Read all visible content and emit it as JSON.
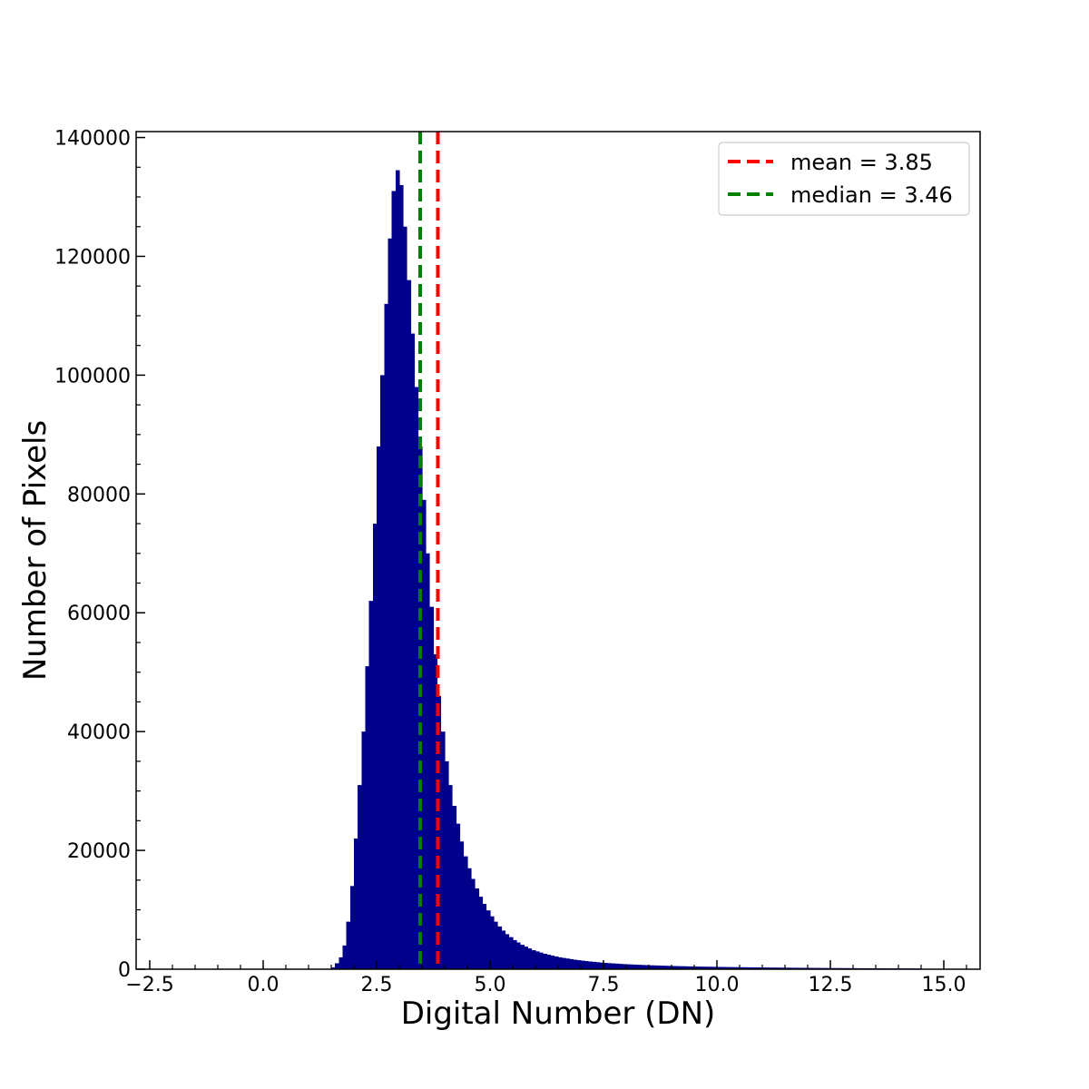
{
  "chart_data": {
    "type": "bar",
    "xlabel": "Digital Number (DN)",
    "ylabel": "Number of Pixels",
    "xlim": [
      -2.8,
      15.8
    ],
    "ylim": [
      0,
      141000
    ],
    "bar_color": "#00008b",
    "x_ticks": [
      "−2.5",
      "0.0",
      "2.5",
      "5.0",
      "7.5",
      "10.0",
      "12.5",
      "15.0"
    ],
    "x_tick_values": [
      -2.5,
      0.0,
      2.5,
      5.0,
      7.5,
      10.0,
      12.5,
      15.0
    ],
    "y_ticks": [
      "0",
      "20000",
      "40000",
      "60000",
      "80000",
      "100000",
      "120000",
      "140000"
    ],
    "y_tick_values": [
      0,
      20000,
      40000,
      60000,
      80000,
      100000,
      120000,
      140000
    ],
    "bin_width": 0.0835,
    "bins": [
      [
        1.5,
        300
      ],
      [
        1.58,
        1000
      ],
      [
        1.67,
        2000
      ],
      [
        1.75,
        4000
      ],
      [
        1.83,
        8000
      ],
      [
        1.92,
        14000
      ],
      [
        2.0,
        22000
      ],
      [
        2.08,
        31000
      ],
      [
        2.17,
        40000
      ],
      [
        2.25,
        51000
      ],
      [
        2.33,
        62000
      ],
      [
        2.42,
        75000
      ],
      [
        2.5,
        88000
      ],
      [
        2.58,
        100000
      ],
      [
        2.67,
        112000
      ],
      [
        2.75,
        123000
      ],
      [
        2.83,
        131000
      ],
      [
        2.92,
        134500
      ],
      [
        3.0,
        132000
      ],
      [
        3.08,
        125000
      ],
      [
        3.17,
        116000
      ],
      [
        3.25,
        107000
      ],
      [
        3.33,
        98000
      ],
      [
        3.42,
        88000
      ],
      [
        3.5,
        79000
      ],
      [
        3.58,
        70000
      ],
      [
        3.67,
        61000
      ],
      [
        3.75,
        53000
      ],
      [
        3.83,
        46000
      ],
      [
        3.92,
        40000
      ],
      [
        4.0,
        35000
      ],
      [
        4.08,
        31000
      ],
      [
        4.17,
        27500
      ],
      [
        4.25,
        24500
      ],
      [
        4.33,
        21500
      ],
      [
        4.42,
        19000
      ],
      [
        4.5,
        17000
      ],
      [
        4.58,
        15200
      ],
      [
        4.67,
        13600
      ],
      [
        4.75,
        12200
      ],
      [
        4.83,
        11000
      ],
      [
        4.92,
        9900
      ],
      [
        5.0,
        8900
      ],
      [
        5.08,
        8000
      ],
      [
        5.17,
        7200
      ],
      [
        5.25,
        6500
      ],
      [
        5.33,
        5900
      ],
      [
        5.42,
        5400
      ],
      [
        5.5,
        4900
      ],
      [
        5.58,
        4500
      ],
      [
        5.67,
        4100
      ],
      [
        5.75,
        3800
      ],
      [
        5.83,
        3500
      ],
      [
        5.92,
        3200
      ],
      [
        6.0,
        3000
      ],
      [
        6.08,
        2800
      ],
      [
        6.17,
        2600
      ],
      [
        6.25,
        2450
      ],
      [
        6.33,
        2300
      ],
      [
        6.42,
        2150
      ],
      [
        6.5,
        2000
      ],
      [
        6.58,
        1900
      ],
      [
        6.67,
        1800
      ],
      [
        6.75,
        1700
      ],
      [
        6.83,
        1600
      ],
      [
        6.92,
        1520
      ],
      [
        7.0,
        1440
      ],
      [
        7.08,
        1370
      ],
      [
        7.17,
        1300
      ],
      [
        7.25,
        1240
      ],
      [
        7.33,
        1180
      ],
      [
        7.42,
        1120
      ],
      [
        7.5,
        1070
      ],
      [
        7.58,
        1020
      ],
      [
        7.67,
        980
      ],
      [
        7.75,
        940
      ],
      [
        7.83,
        900
      ],
      [
        7.92,
        860
      ],
      [
        8.0,
        830
      ],
      [
        8.08,
        800
      ],
      [
        8.17,
        770
      ],
      [
        8.25,
        740
      ],
      [
        8.33,
        710
      ],
      [
        8.42,
        690
      ],
      [
        8.5,
        660
      ],
      [
        8.58,
        640
      ],
      [
        8.67,
        620
      ],
      [
        8.75,
        600
      ],
      [
        8.83,
        580
      ],
      [
        8.92,
        560
      ],
      [
        9.0,
        540
      ],
      [
        9.08,
        525
      ],
      [
        9.17,
        510
      ],
      [
        9.25,
        495
      ],
      [
        9.33,
        480
      ],
      [
        9.42,
        465
      ],
      [
        9.5,
        450
      ],
      [
        9.58,
        440
      ],
      [
        9.67,
        430
      ],
      [
        9.75,
        420
      ],
      [
        9.83,
        410
      ],
      [
        9.92,
        400
      ],
      [
        10.0,
        390
      ],
      [
        10.08,
        380
      ],
      [
        10.17,
        370
      ],
      [
        10.25,
        360
      ],
      [
        10.33,
        352
      ],
      [
        10.42,
        344
      ],
      [
        10.5,
        336
      ],
      [
        10.58,
        328
      ],
      [
        10.67,
        320
      ],
      [
        10.75,
        313
      ],
      [
        10.83,
        306
      ],
      [
        10.92,
        299
      ],
      [
        11.0,
        292
      ],
      [
        11.08,
        286
      ],
      [
        11.17,
        280
      ],
      [
        11.25,
        274
      ],
      [
        11.33,
        268
      ],
      [
        11.42,
        262
      ],
      [
        11.5,
        256
      ],
      [
        11.58,
        250
      ],
      [
        11.67,
        245
      ],
      [
        11.75,
        240
      ],
      [
        11.83,
        235
      ],
      [
        11.92,
        230
      ],
      [
        12.0,
        225
      ],
      [
        12.08,
        220
      ],
      [
        12.17,
        215
      ],
      [
        12.25,
        210
      ],
      [
        12.33,
        206
      ],
      [
        12.42,
        202
      ],
      [
        12.5,
        198
      ],
      [
        12.58,
        194
      ],
      [
        12.67,
        190
      ],
      [
        12.75,
        186
      ],
      [
        12.83,
        182
      ],
      [
        12.92,
        178
      ],
      [
        13.0,
        174
      ],
      [
        13.08,
        170
      ],
      [
        13.17,
        167
      ],
      [
        13.25,
        164
      ],
      [
        13.33,
        161
      ],
      [
        13.42,
        158
      ],
      [
        13.5,
        155
      ],
      [
        13.58,
        152
      ],
      [
        13.67,
        149
      ],
      [
        13.75,
        146
      ],
      [
        13.83,
        143
      ],
      [
        13.92,
        140
      ],
      [
        14.0,
        137
      ],
      [
        14.08,
        134
      ],
      [
        14.17,
        131
      ],
      [
        14.25,
        128
      ],
      [
        14.33,
        125
      ],
      [
        14.42,
        122
      ]
    ],
    "lines": [
      {
        "label": "mean = 3.85",
        "x": 3.85,
        "color": "#ff0000"
      },
      {
        "label": "median = 3.46",
        "x": 3.46,
        "color": "#008000"
      }
    ],
    "legend_position": "upper-right"
  }
}
